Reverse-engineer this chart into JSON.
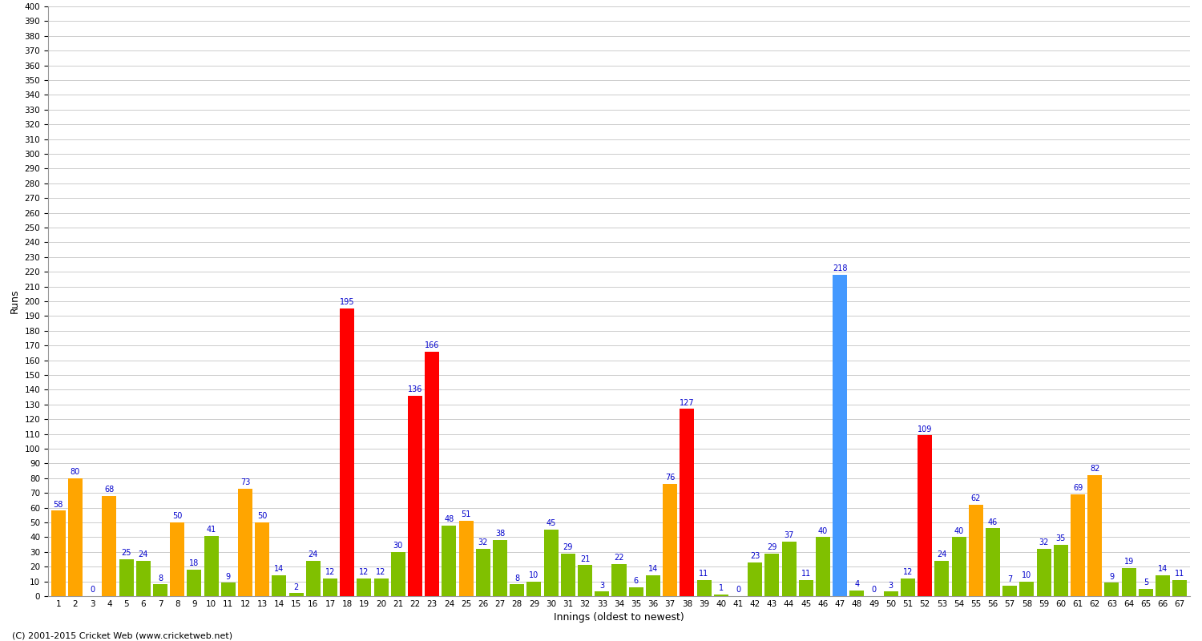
{
  "title": "",
  "xlabel": "Innings (oldest to newest)",
  "ylabel": "Runs",
  "footer": "(C) 2001-2015 Cricket Web (www.cricketweb.net)",
  "ylim": [
    0,
    400
  ],
  "yticks": [
    0,
    10,
    20,
    30,
    40,
    50,
    60,
    70,
    80,
    90,
    100,
    110,
    120,
    130,
    140,
    150,
    160,
    170,
    180,
    190,
    200,
    210,
    220,
    230,
    240,
    250,
    260,
    270,
    280,
    290,
    300,
    310,
    320,
    330,
    340,
    350,
    360,
    370,
    380,
    390,
    400
  ],
  "innings": [
    1,
    2,
    3,
    4,
    5,
    6,
    7,
    8,
    9,
    10,
    11,
    12,
    13,
    14,
    15,
    16,
    17,
    18,
    19,
    20,
    21,
    22,
    23,
    24,
    25,
    26,
    27,
    28,
    29,
    30,
    31,
    32,
    33,
    34,
    35,
    36,
    37,
    38,
    39,
    40,
    41,
    42,
    43,
    44,
    45,
    46,
    47,
    48,
    49,
    50,
    51,
    52,
    53,
    54,
    55,
    56,
    57,
    58,
    59,
    60,
    61,
    62,
    63,
    64,
    65,
    66,
    67
  ],
  "values": [
    58,
    80,
    0,
    68,
    25,
    24,
    8,
    50,
    18,
    41,
    9,
    73,
    50,
    14,
    2,
    24,
    12,
    195,
    12,
    12,
    30,
    136,
    166,
    48,
    51,
    32,
    38,
    8,
    10,
    45,
    29,
    21,
    3,
    22,
    6,
    14,
    76,
    127,
    11,
    1,
    0,
    23,
    29,
    37,
    11,
    40,
    218,
    4,
    0,
    3,
    12,
    109,
    24,
    40,
    62,
    46,
    7,
    10,
    32,
    35,
    69,
    82,
    9,
    19,
    5,
    14,
    11
  ],
  "colors": [
    "orange",
    "orange",
    "orange",
    "orange",
    "green",
    "green",
    "green",
    "orange",
    "green",
    "green",
    "green",
    "orange",
    "orange",
    "green",
    "green",
    "green",
    "green",
    "red",
    "green",
    "green",
    "green",
    "red",
    "red",
    "green",
    "orange",
    "green",
    "green",
    "green",
    "green",
    "green",
    "green",
    "green",
    "green",
    "green",
    "green",
    "green",
    "orange",
    "red",
    "green",
    "green",
    "green",
    "green",
    "green",
    "green",
    "green",
    "green",
    "blue",
    "green",
    "green",
    "green",
    "green",
    "red",
    "green",
    "green",
    "orange",
    "green",
    "green",
    "green",
    "green",
    "green",
    "orange",
    "orange",
    "green",
    "green",
    "green",
    "green",
    "green"
  ],
  "color_map": {
    "orange": "#FFA500",
    "green": "#80C000",
    "red": "#FF0000",
    "blue": "#4499FF"
  },
  "label_color": "#0000CC",
  "label_fontsize": 7,
  "bg_color": "#FFFFFF",
  "grid_color": "#CCCCCC",
  "axis_label_fontsize": 9,
  "tick_fontsize": 7.5
}
